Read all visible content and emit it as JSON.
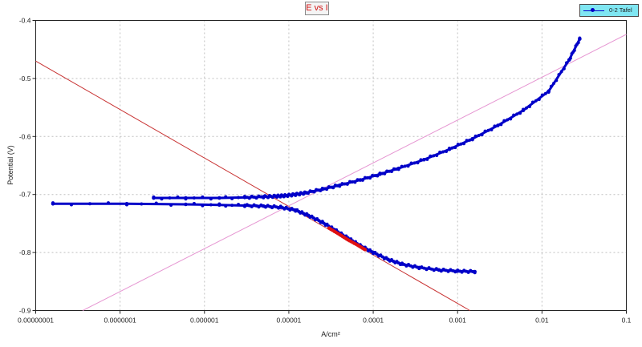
{
  "chart_data": {
    "type": "scatter",
    "title": "E vs I",
    "xlabel": "A/cm^2",
    "ylabel": "Potential (V)",
    "x_scale": "log",
    "xlim": [
      1e-08,
      0.1
    ],
    "ylim": [
      -0.9,
      -0.4
    ],
    "x_tick_values": [
      1e-08,
      1e-07,
      1e-06,
      1e-05,
      0.0001,
      0.001,
      0.01,
      0.1
    ],
    "x_tick_labels": [
      "0.00000001",
      "0.0000001",
      "0.000001",
      "0.00001",
      "0.0001",
      "0.001",
      "0.01",
      "0.1"
    ],
    "y_tick_values": [
      -0.4,
      -0.5,
      -0.6,
      -0.7,
      -0.8,
      -0.9
    ],
    "y_tick_labels": [
      "-0.4",
      "-0.5",
      "-0.6",
      "-0.7",
      "-0.8",
      "-0.9"
    ],
    "grid": true,
    "legend_position": "top-right",
    "colors": {
      "data": "#0000c8",
      "highlight": "#e01010",
      "cathodic_fit": "#c83232",
      "anodic_fit": "#e696d2",
      "grid": "#c0c0c0",
      "title_text": "#d01010",
      "legend_bg": "#7fe6f2"
    },
    "series": [
      {
        "name": "0-2 Tafel",
        "color": "#0000c8",
        "x": [
          1.6e-08,
          1.2e-07,
          6e-07,
          1.5e-06,
          3e-06,
          5e-06,
          8e-06,
          1.2e-05,
          1.7e-05,
          2.5e-05,
          3.5e-05,
          5e-05,
          7e-05,
          0.0001,
          0.00015,
          0.00022,
          0.00035,
          0.0006,
          0.001,
          0.0016
        ],
        "y": [
          -0.716,
          -0.716,
          -0.717,
          -0.718,
          -0.719,
          -0.72,
          -0.722,
          -0.727,
          -0.736,
          -0.748,
          -0.761,
          -0.775,
          -0.788,
          -0.8,
          -0.812,
          -0.82,
          -0.826,
          -0.83,
          -0.832,
          -0.833
        ]
      },
      {
        "name": "0-2 Tafel",
        "color": "#0000c8",
        "x": [
          2.5e-07,
          6e-07,
          1.5e-06,
          3e-06,
          5e-06,
          7e-06,
          9e-06,
          1.2e-05,
          1.6e-05,
          2.5e-05,
          4e-05,
          7e-05,
          0.00012,
          0.0002,
          0.0004,
          0.0008,
          0.0015,
          0.003,
          0.006,
          0.012,
          0.021,
          0.028
        ],
        "y": [
          -0.706,
          -0.706,
          -0.706,
          -0.705,
          -0.704,
          -0.703,
          -0.702,
          -0.7,
          -0.697,
          -0.691,
          -0.684,
          -0.675,
          -0.665,
          -0.655,
          -0.64,
          -0.622,
          -0.604,
          -0.581,
          -0.555,
          -0.522,
          -0.468,
          -0.432
        ]
      }
    ],
    "highlight_region": {
      "x": [
        3e-05,
        4e-05,
        5e-05,
        6.5e-05,
        8e-05
      ],
      "y": [
        -0.758,
        -0.769,
        -0.778,
        -0.787,
        -0.795
      ]
    },
    "fit_lines": [
      {
        "name": "cathodic Tafel fit",
        "x": [
          1e-08,
          0.0014
        ],
        "y": [
          -0.47,
          -0.9
        ]
      },
      {
        "name": "anodic Tafel fit",
        "x": [
          3.6e-08,
          0.1
        ],
        "y": [
          -0.9,
          -0.424
        ]
      }
    ]
  }
}
